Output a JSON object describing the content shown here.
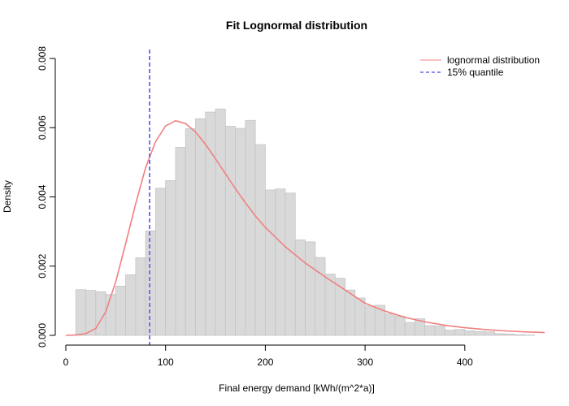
{
  "chart_data": {
    "type": "bar",
    "title": "Fit Lognormal distribution",
    "xlabel": "Final energy demand [kWh/(m^2*a)]",
    "ylabel": "Density",
    "xlim": [
      0,
      480
    ],
    "ylim": [
      0,
      0.008
    ],
    "x_ticks": [
      "0",
      "100",
      "200",
      "300",
      "400"
    ],
    "x_tick_values": [
      0,
      100,
      200,
      300,
      400
    ],
    "y_ticks": [
      "0.000",
      "0.002",
      "0.004",
      "0.006",
      "0.008"
    ],
    "y_tick_values": [
      0,
      0.002,
      0.004,
      0.006,
      0.008
    ],
    "histogram": {
      "bin_width": 10,
      "bin_start": 10,
      "fill_color": "#d9d9d9",
      "edge_color": "#c4c4c4",
      "densities": [
        0.00132,
        0.0013,
        0.00126,
        0.00118,
        0.00142,
        0.00175,
        0.00224,
        0.00302,
        0.00425,
        0.00447,
        0.00543,
        0.00597,
        0.00626,
        0.00645,
        0.00654,
        0.00604,
        0.00598,
        0.00621,
        0.00551,
        0.0042,
        0.00423,
        0.00411,
        0.00276,
        0.0027,
        0.00225,
        0.00177,
        0.00165,
        0.00131,
        0.00108,
        0.00085,
        0.00087,
        0.00062,
        0.00055,
        0.00037,
        0.00048,
        0.00028,
        0.00027,
        0.00015,
        0.00017,
        0.00013,
        0.00011,
        0.0001,
        5e-05,
        4e-05,
        2e-05,
        1e-05
      ]
    },
    "series": [
      {
        "name": "lognormal distribution",
        "kind": "line",
        "color": "#f08080",
        "x": [
          0,
          10,
          20,
          30,
          40,
          50,
          60,
          70,
          80,
          90,
          100,
          110,
          120,
          130,
          140,
          150,
          160,
          170,
          180,
          190,
          200,
          220,
          240,
          260,
          280,
          300,
          320,
          340,
          360,
          380,
          400,
          420,
          440,
          460,
          480
        ],
        "y": [
          0,
          1e-05,
          5e-05,
          0.0002,
          0.00068,
          0.00155,
          0.00265,
          0.0038,
          0.00485,
          0.0056,
          0.00605,
          0.0062,
          0.00612,
          0.00588,
          0.00552,
          0.0051,
          0.00467,
          0.00424,
          0.00383,
          0.00345,
          0.00312,
          0.00256,
          0.00209,
          0.00169,
          0.00131,
          0.00093,
          0.0007,
          0.00052,
          0.00039,
          0.00029,
          0.00022,
          0.00017,
          0.00013,
          0.0001,
          8e-05
        ]
      },
      {
        "name": "15% quantile",
        "kind": "vline",
        "color": "#6666ee",
        "x_value": 84
      }
    ],
    "legend": {
      "position": "top-right",
      "items": [
        "lognormal distribution",
        "15% quantile"
      ]
    },
    "grid": false
  }
}
